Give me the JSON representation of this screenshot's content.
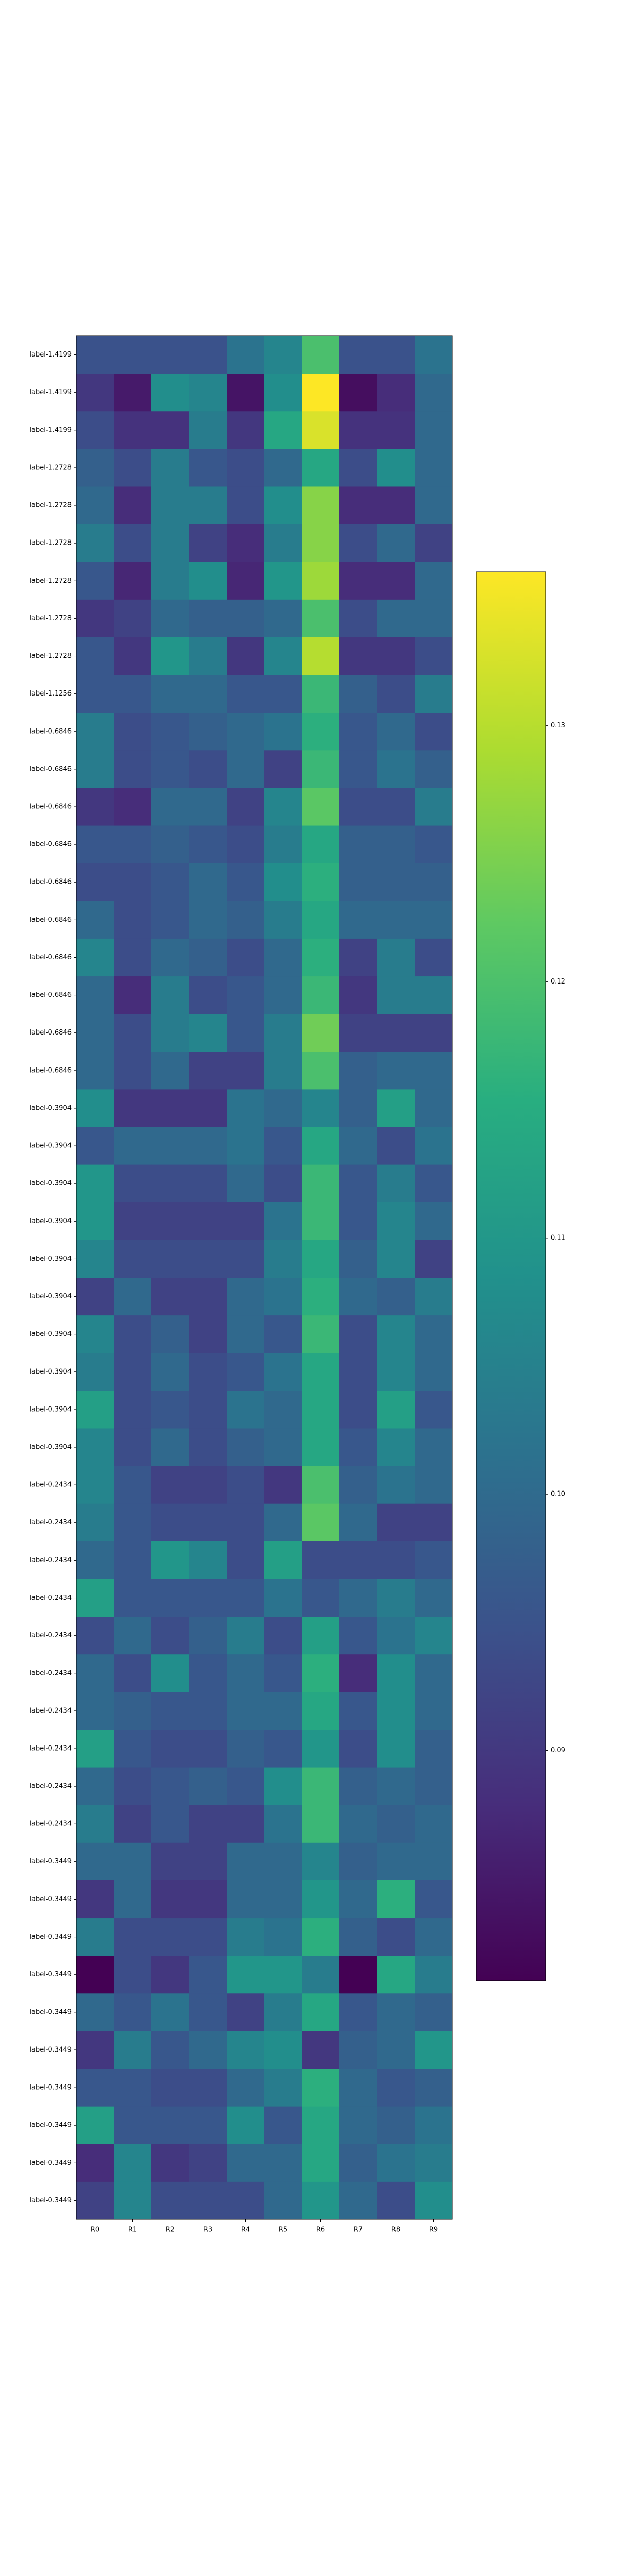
{
  "chart_data": {
    "type": "heatmap",
    "colormap": "viridis",
    "x": [
      "R0",
      "R1",
      "R2",
      "R3",
      "R4",
      "R5",
      "R6",
      "R7",
      "R8",
      "R9"
    ],
    "y": [
      "label-1.4199",
      "label-1.4199",
      "label-1.4199",
      "label-1.2728",
      "label-1.2728",
      "label-1.2728",
      "label-1.2728",
      "label-1.2728",
      "label-1.2728",
      "label-1.1256",
      "label-0.6846",
      "label-0.6846",
      "label-0.6846",
      "label-0.6846",
      "label-0.6846",
      "label-0.6846",
      "label-0.6846",
      "label-0.6846",
      "label-0.6846",
      "label-0.6846",
      "label-0.3904",
      "label-0.3904",
      "label-0.3904",
      "label-0.3904",
      "label-0.3904",
      "label-0.3904",
      "label-0.3904",
      "label-0.3904",
      "label-0.3904",
      "label-0.3904",
      "label-0.2434",
      "label-0.2434",
      "label-0.2434",
      "label-0.2434",
      "label-0.2434",
      "label-0.2434",
      "label-0.2434",
      "label-0.2434",
      "label-0.2434",
      "label-0.2434",
      "label-0.3449",
      "label-0.3449",
      "label-0.3449",
      "label-0.3449",
      "label-0.3449",
      "label-0.3449",
      "label-0.3449",
      "label-0.3449",
      "label-0.3449",
      "label-0.3449"
    ],
    "values": [
      [
        0.095,
        0.095,
        0.095,
        0.095,
        0.102,
        0.106,
        0.12,
        0.095,
        0.095,
        0.102
      ],
      [
        0.09,
        0.085,
        0.108,
        0.106,
        0.084,
        0.108,
        0.136,
        0.083,
        0.088,
        0.1
      ],
      [
        0.094,
        0.089,
        0.089,
        0.104,
        0.09,
        0.114,
        0.133,
        0.089,
        0.089,
        0.1
      ],
      [
        0.098,
        0.094,
        0.104,
        0.096,
        0.094,
        0.1,
        0.114,
        0.094,
        0.108,
        0.1
      ],
      [
        0.1,
        0.088,
        0.104,
        0.104,
        0.094,
        0.108,
        0.126,
        0.088,
        0.088,
        0.1
      ],
      [
        0.104,
        0.094,
        0.104,
        0.092,
        0.088,
        0.104,
        0.126,
        0.094,
        0.1,
        0.092
      ],
      [
        0.096,
        0.087,
        0.104,
        0.108,
        0.087,
        0.11,
        0.128,
        0.088,
        0.088,
        0.1
      ],
      [
        0.09,
        0.092,
        0.1,
        0.098,
        0.098,
        0.1,
        0.12,
        0.094,
        0.1,
        0.1
      ],
      [
        0.096,
        0.09,
        0.11,
        0.104,
        0.09,
        0.106,
        0.13,
        0.09,
        0.09,
        0.094
      ],
      [
        0.096,
        0.096,
        0.1,
        0.1,
        0.096,
        0.096,
        0.118,
        0.098,
        0.094,
        0.104
      ],
      [
        0.104,
        0.094,
        0.096,
        0.098,
        0.1,
        0.102,
        0.116,
        0.096,
        0.1,
        0.094
      ],
      [
        0.104,
        0.094,
        0.096,
        0.094,
        0.1,
        0.092,
        0.118,
        0.096,
        0.102,
        0.098
      ],
      [
        0.09,
        0.088,
        0.1,
        0.1,
        0.092,
        0.106,
        0.122,
        0.094,
        0.094,
        0.104
      ],
      [
        0.096,
        0.096,
        0.098,
        0.096,
        0.094,
        0.104,
        0.114,
        0.098,
        0.098,
        0.096
      ],
      [
        0.094,
        0.094,
        0.096,
        0.1,
        0.096,
        0.108,
        0.116,
        0.098,
        0.098,
        0.098
      ],
      [
        0.1,
        0.094,
        0.096,
        0.1,
        0.098,
        0.104,
        0.114,
        0.1,
        0.1,
        0.1
      ],
      [
        0.106,
        0.094,
        0.1,
        0.098,
        0.094,
        0.1,
        0.116,
        0.092,
        0.104,
        0.094
      ],
      [
        0.1,
        0.088,
        0.104,
        0.094,
        0.096,
        0.1,
        0.118,
        0.09,
        0.104,
        0.104
      ],
      [
        0.1,
        0.094,
        0.104,
        0.106,
        0.096,
        0.104,
        0.124,
        0.092,
        0.092,
        0.092
      ],
      [
        0.1,
        0.094,
        0.1,
        0.092,
        0.092,
        0.104,
        0.12,
        0.098,
        0.1,
        0.1
      ],
      [
        0.108,
        0.09,
        0.09,
        0.09,
        0.102,
        0.1,
        0.106,
        0.098,
        0.112,
        0.1
      ],
      [
        0.096,
        0.1,
        0.1,
        0.1,
        0.102,
        0.096,
        0.114,
        0.1,
        0.094,
        0.102
      ],
      [
        0.11,
        0.094,
        0.094,
        0.094,
        0.1,
        0.094,
        0.118,
        0.096,
        0.104,
        0.096
      ],
      [
        0.11,
        0.092,
        0.092,
        0.092,
        0.092,
        0.102,
        0.118,
        0.096,
        0.106,
        0.1
      ],
      [
        0.106,
        0.094,
        0.094,
        0.094,
        0.094,
        0.104,
        0.114,
        0.098,
        0.106,
        0.092
      ],
      [
        0.092,
        0.1,
        0.092,
        0.092,
        0.1,
        0.102,
        0.116,
        0.1,
        0.098,
        0.104
      ],
      [
        0.106,
        0.094,
        0.098,
        0.092,
        0.1,
        0.096,
        0.118,
        0.094,
        0.106,
        0.1
      ],
      [
        0.104,
        0.094,
        0.1,
        0.094,
        0.096,
        0.102,
        0.114,
        0.094,
        0.106,
        0.1
      ],
      [
        0.112,
        0.094,
        0.096,
        0.094,
        0.102,
        0.1,
        0.114,
        0.094,
        0.112,
        0.096
      ],
      [
        0.106,
        0.094,
        0.1,
        0.094,
        0.098,
        0.1,
        0.114,
        0.096,
        0.106,
        0.1
      ],
      [
        0.106,
        0.096,
        0.092,
        0.092,
        0.094,
        0.09,
        0.12,
        0.098,
        0.102,
        0.1
      ],
      [
        0.104,
        0.096,
        0.094,
        0.094,
        0.094,
        0.1,
        0.122,
        0.1,
        0.092,
        0.092
      ],
      [
        0.1,
        0.096,
        0.11,
        0.106,
        0.094,
        0.112,
        0.094,
        0.094,
        0.094,
        0.096
      ],
      [
        0.112,
        0.096,
        0.096,
        0.096,
        0.096,
        0.102,
        0.096,
        0.1,
        0.104,
        0.1
      ],
      [
        0.094,
        0.1,
        0.094,
        0.098,
        0.104,
        0.094,
        0.112,
        0.096,
        0.102,
        0.106
      ],
      [
        0.1,
        0.094,
        0.108,
        0.096,
        0.1,
        0.096,
        0.116,
        0.088,
        0.108,
        0.1
      ],
      [
        0.1,
        0.098,
        0.096,
        0.096,
        0.1,
        0.1,
        0.114,
        0.096,
        0.108,
        0.1
      ],
      [
        0.112,
        0.096,
        0.094,
        0.094,
        0.098,
        0.096,
        0.11,
        0.094,
        0.108,
        0.098
      ],
      [
        0.1,
        0.094,
        0.096,
        0.098,
        0.096,
        0.108,
        0.118,
        0.098,
        0.1,
        0.098
      ],
      [
        0.104,
        0.092,
        0.096,
        0.092,
        0.092,
        0.102,
        0.118,
        0.1,
        0.098,
        0.1
      ],
      [
        0.1,
        0.1,
        0.092,
        0.092,
        0.1,
        0.1,
        0.106,
        0.098,
        0.1,
        0.1
      ],
      [
        0.09,
        0.1,
        0.09,
        0.09,
        0.1,
        0.1,
        0.11,
        0.1,
        0.116,
        0.096
      ],
      [
        0.104,
        0.094,
        0.094,
        0.094,
        0.104,
        0.102,
        0.116,
        0.098,
        0.094,
        0.1
      ],
      [
        0.081,
        0.094,
        0.09,
        0.096,
        0.11,
        0.11,
        0.104,
        0.081,
        0.114,
        0.104
      ],
      [
        0.1,
        0.096,
        0.102,
        0.096,
        0.092,
        0.104,
        0.114,
        0.096,
        0.1,
        0.098
      ],
      [
        0.09,
        0.104,
        0.096,
        0.1,
        0.106,
        0.108,
        0.09,
        0.098,
        0.1,
        0.11
      ],
      [
        0.096,
        0.096,
        0.094,
        0.094,
        0.1,
        0.104,
        0.116,
        0.1,
        0.096,
        0.098
      ],
      [
        0.112,
        0.096,
        0.096,
        0.096,
        0.108,
        0.096,
        0.114,
        0.1,
        0.098,
        0.102
      ],
      [
        0.088,
        0.106,
        0.09,
        0.092,
        0.1,
        0.1,
        0.114,
        0.098,
        0.102,
        0.104
      ],
      [
        0.092,
        0.106,
        0.094,
        0.094,
        0.094,
        0.1,
        0.11,
        0.1,
        0.094,
        0.108
      ]
    ],
    "clim": [
      0.081,
      0.136
    ],
    "cticks": [
      0.09,
      {
        "value": 0.1,
        "label": "0.10"
      },
      0.11,
      0.12,
      0.13
    ]
  }
}
